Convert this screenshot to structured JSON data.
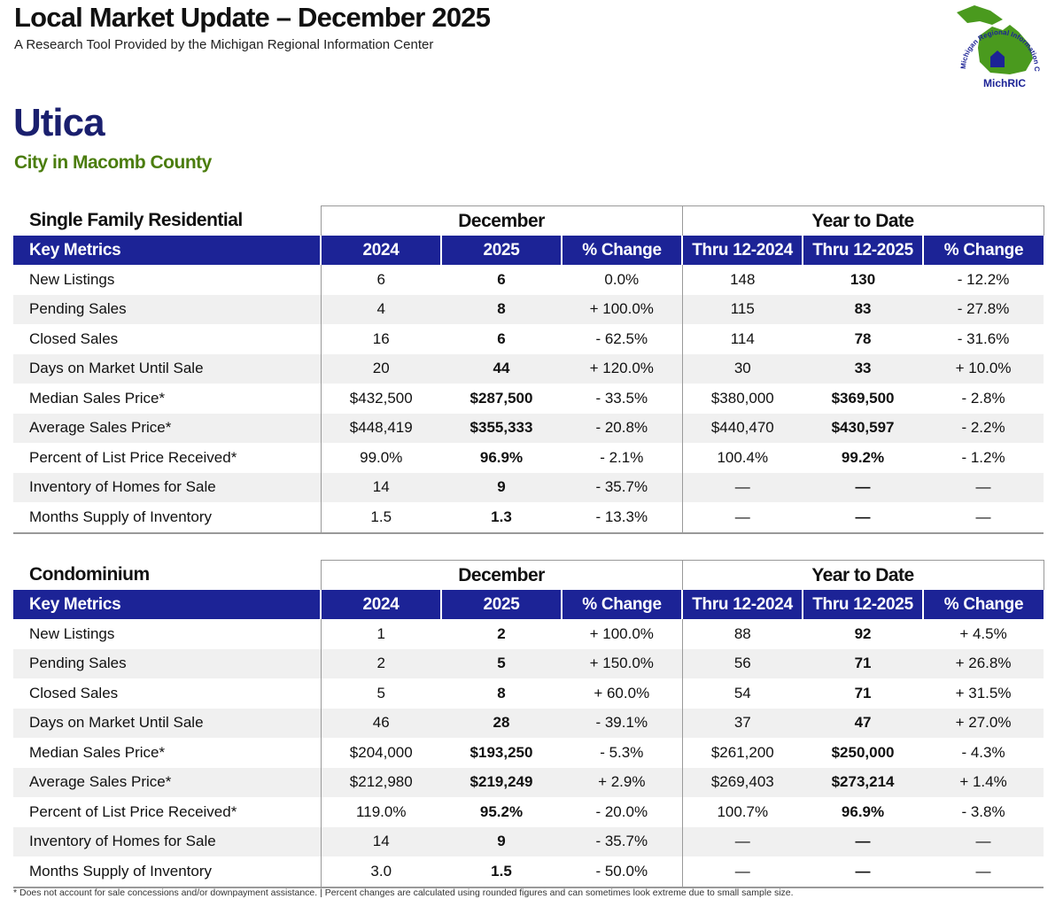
{
  "header": {
    "title": "Local Market Update – December 2025",
    "subtitle": "A Research Tool Provided by the Michigan Regional Information Center",
    "logo_arc": "Michigan Regional Information Center",
    "logo_name": "MichRIC"
  },
  "location": {
    "name": "Utica",
    "area": "City in Macomb County"
  },
  "tables": [
    {
      "title": "Single Family Residential",
      "groups": [
        "December",
        "Year to Date"
      ],
      "columns": [
        "Key Metrics",
        "2024",
        "2025",
        "% Change",
        "Thru 12-2024",
        "Thru 12-2025",
        "% Change"
      ],
      "rows": [
        [
          "New Listings",
          "6",
          "6",
          "0.0%",
          "148",
          "130",
          "- 12.2%"
        ],
        [
          "Pending Sales",
          "4",
          "8",
          "+ 100.0%",
          "115",
          "83",
          "- 27.8%"
        ],
        [
          "Closed Sales",
          "16",
          "6",
          "- 62.5%",
          "114",
          "78",
          "- 31.6%"
        ],
        [
          "Days on Market Until Sale",
          "20",
          "44",
          "+ 120.0%",
          "30",
          "33",
          "+ 10.0%"
        ],
        [
          "Median Sales Price*",
          "$432,500",
          "$287,500",
          "- 33.5%",
          "$380,000",
          "$369,500",
          "- 2.8%"
        ],
        [
          "Average Sales Price*",
          "$448,419",
          "$355,333",
          "- 20.8%",
          "$440,470",
          "$430,597",
          "- 2.2%"
        ],
        [
          "Percent of List Price Received*",
          "99.0%",
          "96.9%",
          "- 2.1%",
          "100.4%",
          "99.2%",
          "- 1.2%"
        ],
        [
          "Inventory of Homes for Sale",
          "14",
          "9",
          "- 35.7%",
          "—",
          "—",
          "—"
        ],
        [
          "Months Supply of Inventory",
          "1.5",
          "1.3",
          "- 13.3%",
          "—",
          "—",
          "—"
        ]
      ]
    },
    {
      "title": "Condominium",
      "groups": [
        "December",
        "Year to Date"
      ],
      "columns": [
        "Key Metrics",
        "2024",
        "2025",
        "% Change",
        "Thru 12-2024",
        "Thru 12-2025",
        "% Change"
      ],
      "rows": [
        [
          "New Listings",
          "1",
          "2",
          "+ 100.0%",
          "88",
          "92",
          "+ 4.5%"
        ],
        [
          "Pending Sales",
          "2",
          "5",
          "+ 150.0%",
          "56",
          "71",
          "+ 26.8%"
        ],
        [
          "Closed Sales",
          "5",
          "8",
          "+ 60.0%",
          "54",
          "71",
          "+ 31.5%"
        ],
        [
          "Days on Market Until Sale",
          "46",
          "28",
          "- 39.1%",
          "37",
          "47",
          "+ 27.0%"
        ],
        [
          "Median Sales Price*",
          "$204,000",
          "$193,250",
          "- 5.3%",
          "$261,200",
          "$250,000",
          "- 4.3%"
        ],
        [
          "Average Sales Price*",
          "$212,980",
          "$219,249",
          "+ 2.9%",
          "$269,403",
          "$273,214",
          "+ 1.4%"
        ],
        [
          "Percent of List Price Received*",
          "119.0%",
          "95.2%",
          "- 20.0%",
          "100.7%",
          "96.9%",
          "- 3.8%"
        ],
        [
          "Inventory of Homes for Sale",
          "14",
          "9",
          "- 35.7%",
          "—",
          "—",
          "—"
        ],
        [
          "Months Supply of Inventory",
          "3.0",
          "1.5",
          "- 50.0%",
          "—",
          "—",
          "—"
        ]
      ]
    }
  ],
  "footnote": "* Does not account for sale concessions and/or downpayment assistance. | Percent changes are calculated using rounded figures and can sometimes look extreme due to small sample size."
}
